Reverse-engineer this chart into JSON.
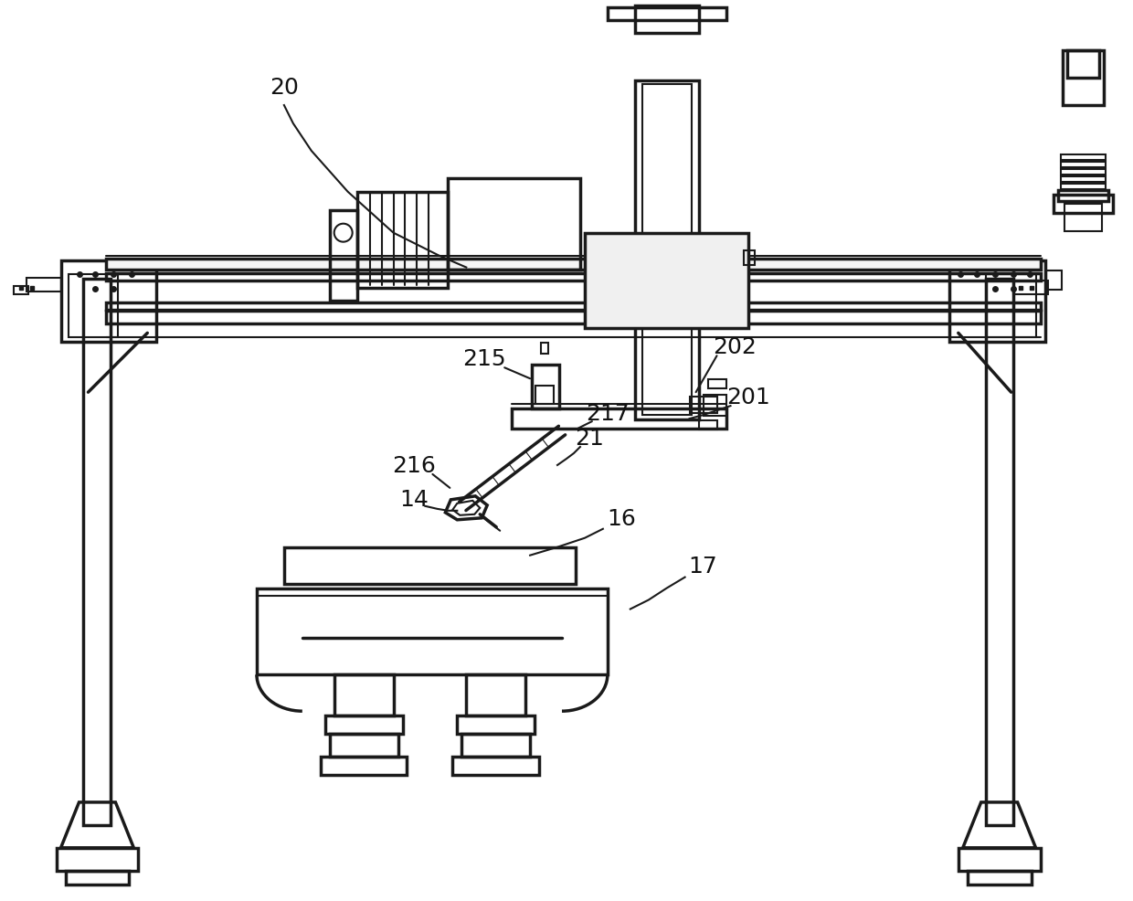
{
  "bg_color": "#ffffff",
  "lc": "#1a1a1a",
  "lw": 1.5,
  "lw2": 2.5,
  "lw3": 3.5,
  "fig_w": 12.4,
  "fig_h": 9.87
}
